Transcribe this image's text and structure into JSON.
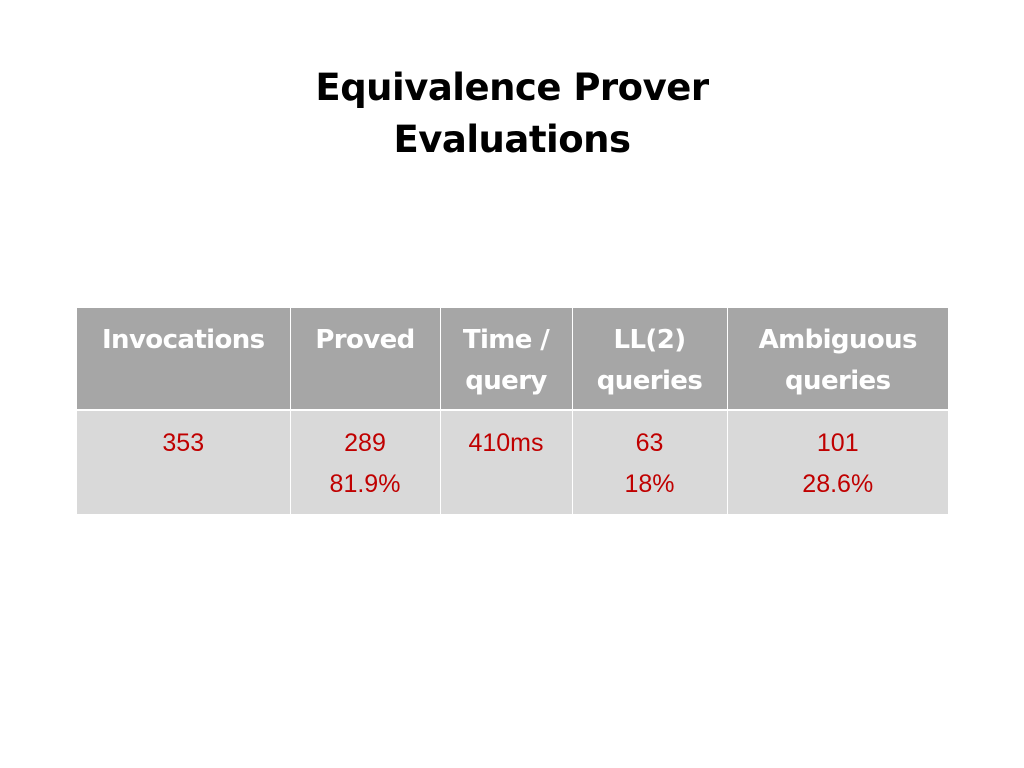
{
  "title": {
    "line1": "Equivalence Prover",
    "line2": "Evaluations"
  },
  "table": {
    "headers": [
      {
        "line1": "Invocations",
        "line2": ""
      },
      {
        "line1": "Proved",
        "line2": ""
      },
      {
        "line1": "Time /",
        "line2": "query"
      },
      {
        "line1": "LL(2)",
        "line2": "queries"
      },
      {
        "line1": "Ambiguous",
        "line2": "queries"
      }
    ],
    "row": [
      {
        "line1": "353",
        "line2": ""
      },
      {
        "line1": "289",
        "line2": "81.9%"
      },
      {
        "line1": "410ms",
        "line2": ""
      },
      {
        "line1": "63",
        "line2": "18%"
      },
      {
        "line1": "101",
        "line2": "28.6%"
      }
    ]
  },
  "colors": {
    "header_bg": "#a6a6a6",
    "header_text": "#ffffff",
    "cell_bg": "#d9d9d9",
    "cell_text": "#c00000"
  }
}
